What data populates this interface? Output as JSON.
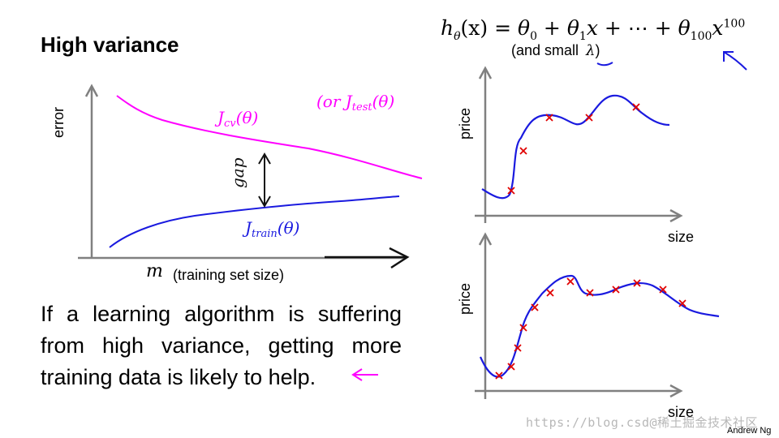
{
  "title": "High variance",
  "formula": {
    "lhs": "h",
    "lhs_sub": "θ",
    "lhs_arg": "(x) = ",
    "t0": "θ",
    "t0_sub": "0",
    "plus1": " + ",
    "t1": "θ",
    "t1_sub": "1",
    "t1_x": "x",
    "dots": " + ⋯ + ",
    "t100": "θ",
    "t100_sub": "100",
    "t100_x": "x",
    "t100_sup": "100"
  },
  "lambda_note": {
    "prefix": "(and small ",
    "symbol": "λ",
    "suffix": ")"
  },
  "learning_curve": {
    "y_label": "error",
    "x_symbol": "m",
    "x_label": "(training set size)",
    "cv_label": "J",
    "cv_sub": "cv",
    "cv_arg": "(θ)",
    "test_label": "(or J",
    "test_sub": "test",
    "test_arg": "(θ)",
    "train_label": "J",
    "train_sub": "train",
    "train_arg": "(θ)",
    "gap_label": "gap",
    "colors": {
      "cv": "#ff00ff",
      "train": "#1a1adf",
      "axes": "#808080"
    }
  },
  "fit_plots": [
    {
      "y_label": "price",
      "x_label": "size"
    },
    {
      "y_label": "price",
      "x_label": "size"
    }
  ],
  "conclusion": "If a learning algorithm is suffering from high variance, getting more training data is likely to help.",
  "watermark": "https://blog.csd@稀土掘金技术社区",
  "author": "Andrew Ng"
}
